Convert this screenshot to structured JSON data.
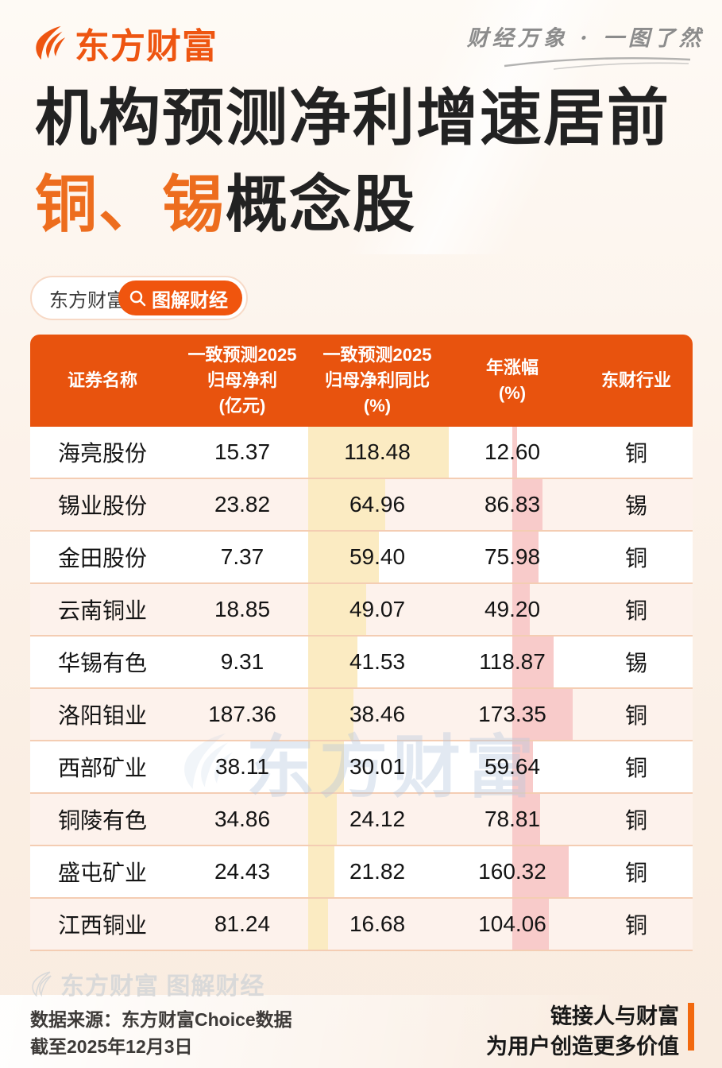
{
  "brand": {
    "logo_text": "东方财富",
    "tagline": "财经万象 · 一图了然",
    "watermark_text": "东方财富",
    "footer_brand": "东方财富 图解财经"
  },
  "title": {
    "line1": "机构预测净利增速居前",
    "line2_highlight": "铜、锡",
    "line2_rest": "概念股"
  },
  "badge": {
    "app_label": "东方财富APP",
    "series_label": "图解财经"
  },
  "table": {
    "columns": {
      "name": {
        "lines": [
          "证券名称"
        ]
      },
      "profit": {
        "lines": [
          "一致预测2025",
          "归母净利",
          "(亿元)"
        ]
      },
      "yoy": {
        "lines": [
          "一致预测2025",
          "归母净利同比",
          "(%)"
        ]
      },
      "change": {
        "lines": [
          "年涨幅",
          "(%)"
        ]
      },
      "industry": {
        "lines": [
          "东财行业"
        ]
      }
    },
    "rows": [
      {
        "name": "海亮股份",
        "profit": "15.37",
        "yoy": "118.48",
        "change": "12.60",
        "industry": "铜"
      },
      {
        "name": "锡业股份",
        "profit": "23.82",
        "yoy": "64.96",
        "change": "86.83",
        "industry": "锡"
      },
      {
        "name": "金田股份",
        "profit": "7.37",
        "yoy": "59.40",
        "change": "75.98",
        "industry": "铜"
      },
      {
        "name": "云南铜业",
        "profit": "18.85",
        "yoy": "49.07",
        "change": "49.20",
        "industry": "铜"
      },
      {
        "name": "华锡有色",
        "profit": "9.31",
        "yoy": "41.53",
        "change": "118.87",
        "industry": "锡"
      },
      {
        "name": "洛阳钼业",
        "profit": "187.36",
        "yoy": "38.46",
        "change": "173.35",
        "industry": "铜"
      },
      {
        "name": "西部矿业",
        "profit": "38.11",
        "yoy": "30.01",
        "change": "59.64",
        "industry": "铜"
      },
      {
        "name": "铜陵有色",
        "profit": "34.86",
        "yoy": "24.12",
        "change": "78.81",
        "industry": "铜"
      },
      {
        "name": "盛屯矿业",
        "profit": "24.43",
        "yoy": "21.82",
        "change": "160.32",
        "industry": "铜"
      },
      {
        "name": "江西铜业",
        "profit": "81.24",
        "yoy": "16.68",
        "change": "104.06",
        "industry": "铜"
      }
    ]
  },
  "footer": {
    "source_line1": "数据来源：东方财富Choice数据",
    "source_line2": "截至2025年12月3日",
    "slogan_line1": "链接人与财富",
    "slogan_line2": "为用户创造更多价值"
  },
  "colors": {
    "accent_orange": "#E8530E",
    "title_highlight": "#ED6D1E",
    "row_alt": "#FDF2EC",
    "bar_yellow": "#FBEBC2",
    "bar_pink": "#F8CBCA"
  },
  "chart_data": {
    "type": "table",
    "title": "机构预测净利增速居前 铜、锡概念股",
    "columns": [
      "证券名称",
      "一致预测2025归母净利(亿元)",
      "一致预测2025归母净利同比(%)",
      "年涨幅(%)",
      "东财行业"
    ],
    "rows": [
      [
        "海亮股份",
        15.37,
        118.48,
        12.6,
        "铜"
      ],
      [
        "锡业股份",
        23.82,
        64.96,
        86.83,
        "锡"
      ],
      [
        "金田股份",
        7.37,
        59.4,
        75.98,
        "铜"
      ],
      [
        "云南铜业",
        18.85,
        49.07,
        49.2,
        "铜"
      ],
      [
        "华锡有色",
        9.31,
        41.53,
        118.87,
        "锡"
      ],
      [
        "洛阳钼业",
        187.36,
        38.46,
        173.35,
        "铜"
      ],
      [
        "西部矿业",
        38.11,
        30.01,
        59.64,
        "铜"
      ],
      [
        "铜陵有色",
        34.86,
        24.12,
        78.81,
        "铜"
      ],
      [
        "盛屯矿业",
        24.43,
        21.82,
        160.32,
        "铜"
      ],
      [
        "江西铜业",
        81.24,
        16.68,
        104.06,
        "铜"
      ]
    ],
    "layout_hints": {
      "yoy_column_has_yellow_bars_proportional_to_value": true,
      "change_column_has_pink_bars_proportional_to_value": true
    }
  }
}
